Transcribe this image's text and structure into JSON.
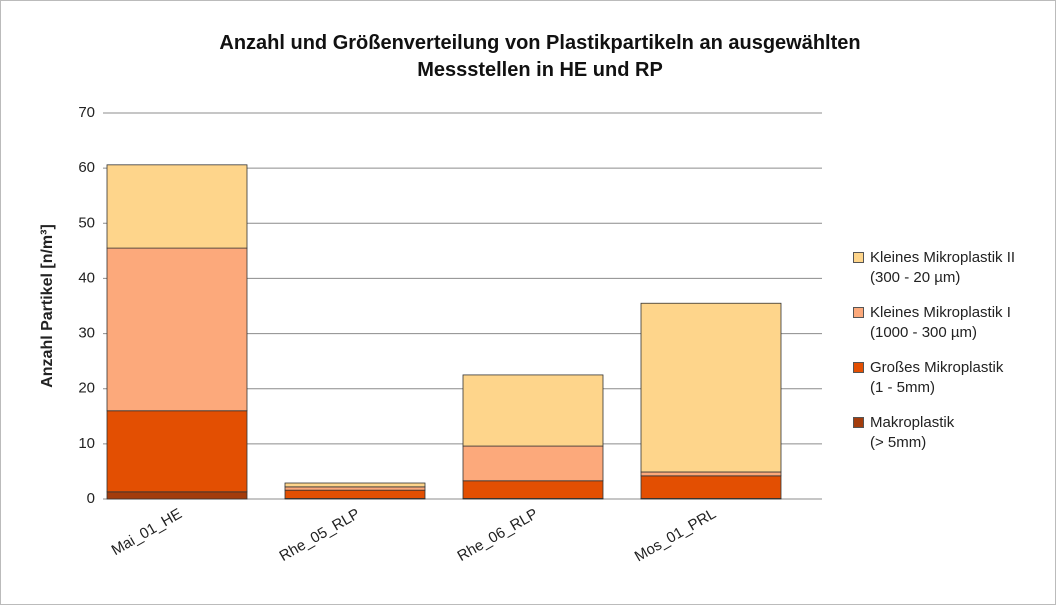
{
  "chart_data": {
    "type": "stacked_bar",
    "title": "Anzahl und Größenverteilung von Plastikpartikeln an ausgewählten\nMessstellen in HE und RP",
    "y_label": "Anzahl Partikel [n/m³]",
    "categories": [
      "Mai_01_HE",
      "Rhe_05_RLP",
      "Rhe_06_RLP",
      "Mos_01_PRL"
    ],
    "series": [
      {
        "name": "Makroplastik\n(> 5mm)",
        "color": "#a33c0c",
        "values": [
          1.3,
          0.1,
          0.1,
          0.1
        ]
      },
      {
        "name": "Großes Mikroplastik\n(1 - 5mm)",
        "color": "#e34f02",
        "values": [
          14.7,
          1.5,
          3.2,
          4.1
        ]
      },
      {
        "name": "Kleines Mikroplastik I\n(1000 - 300 µm)",
        "color": "#fca97b",
        "values": [
          29.5,
          0.6,
          6.3,
          0.7
        ]
      },
      {
        "name": "Kleines Mikroplastik II\n(300 - 20 µm)",
        "color": "#fed58b",
        "values": [
          15.1,
          0.7,
          12.9,
          30.6
        ]
      }
    ],
    "ylim": [
      0,
      70
    ],
    "yticks": [
      0,
      10,
      20,
      30,
      40,
      50,
      60,
      70
    ],
    "grid": true,
    "legend": "right"
  }
}
